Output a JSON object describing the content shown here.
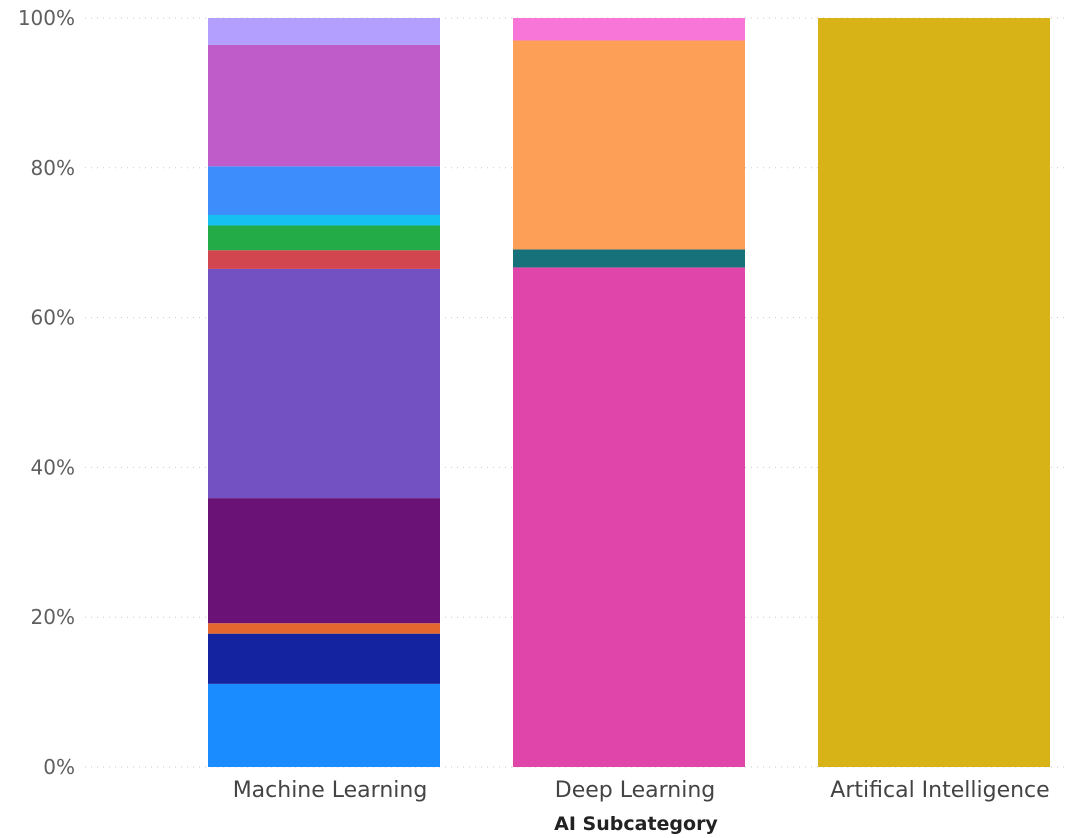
{
  "chart_data": {
    "type": "bar",
    "stacked": true,
    "percent_stacked": true,
    "xlabel": "AI Subcategory",
    "ylabel": "",
    "ylim": [
      0,
      100
    ],
    "y_ticks": [
      "0%",
      "20%",
      "40%",
      "60%",
      "80%",
      "100%"
    ],
    "grid": true,
    "categories": [
      "Machine Learning",
      "Deep Learning",
      "Artifical Intelligence"
    ],
    "stacks": [
      {
        "category": "Machine Learning",
        "segments": [
          {
            "value": 11.1,
            "color": "#1a8cff"
          },
          {
            "value": 6.7,
            "color": "#1423a0"
          },
          {
            "value": 1.4,
            "color": "#e4672f"
          },
          {
            "value": 16.7,
            "color": "#6b1277"
          },
          {
            "value": 30.6,
            "color": "#7451c2"
          },
          {
            "value": 2.5,
            "color": "#d1464f"
          },
          {
            "value": 3.3,
            "color": "#22ab47"
          },
          {
            "value": 1.4,
            "color": "#16c0f1"
          },
          {
            "value": 6.5,
            "color": "#3d8efc"
          },
          {
            "value": 16.2,
            "color": "#bf5cc9"
          },
          {
            "value": 3.6,
            "color": "#b39ffd"
          }
        ]
      },
      {
        "category": "Deep Learning",
        "segments": [
          {
            "value": 66.7,
            "color": "#e045a9"
          },
          {
            "value": 2.4,
            "color": "#17717a"
          },
          {
            "value": 27.9,
            "color": "#fe9f58"
          },
          {
            "value": 3.0,
            "color": "#f776d7"
          }
        ]
      },
      {
        "category": "Artifical Intelligence",
        "segments": [
          {
            "value": 100,
            "color": "#d8b318"
          }
        ]
      }
    ]
  }
}
